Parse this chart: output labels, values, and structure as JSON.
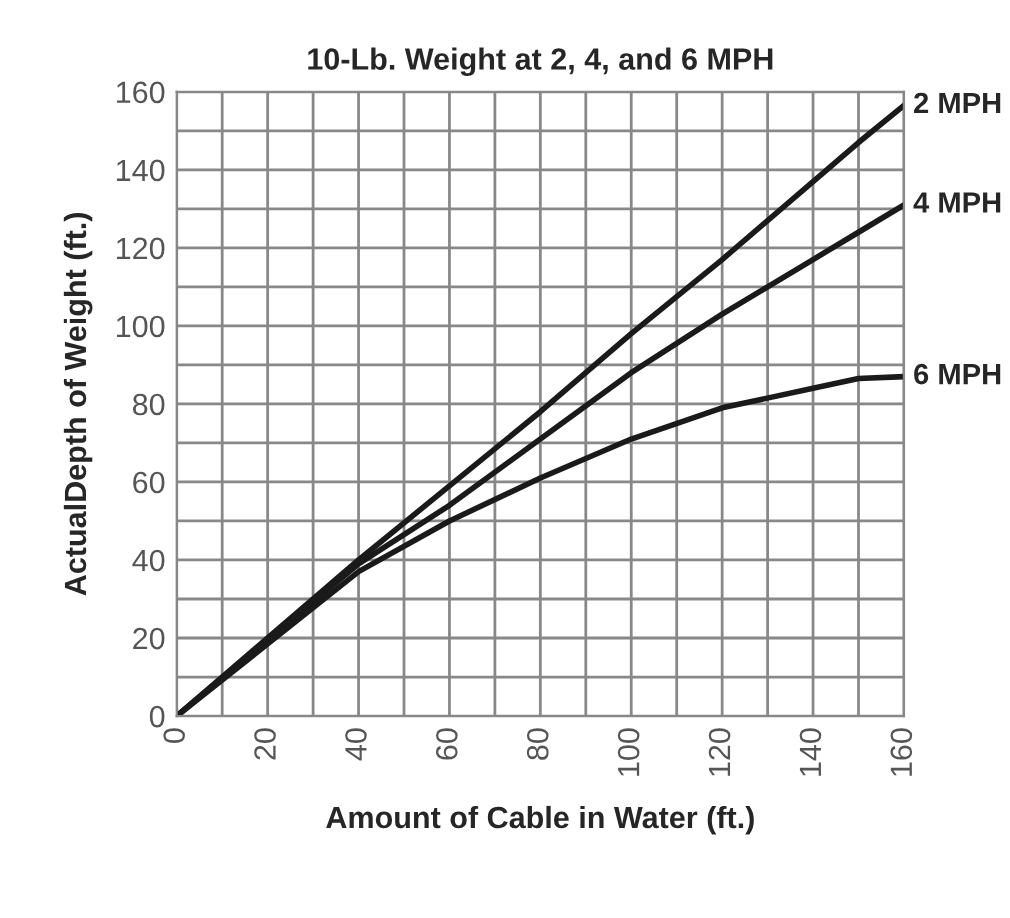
{
  "chart_data": {
    "type": "line",
    "title": "10-Lb. Weight at 2, 4, and 6 MPH",
    "xlabel": "Amount of Cable in Water (ft.)",
    "ylabel": "ActualDepth of Weight (ft.)",
    "x": [
      0,
      40,
      60,
      80,
      100,
      120,
      140,
      150,
      160
    ],
    "series": [
      {
        "name": "2 MPH",
        "color": "#1a1a1a",
        "values": [
          0,
          40,
          59,
          78,
          98,
          117,
          137,
          147,
          156.5
        ]
      },
      {
        "name": "4 MPH",
        "color": "#1a1a1a",
        "values": [
          0,
          39,
          54,
          71,
          88,
          103,
          117,
          124,
          131
        ]
      },
      {
        "name": "6 MPH",
        "color": "#1a1a1a",
        "values": [
          0,
          37,
          50,
          61,
          71,
          79,
          84,
          86.5,
          87
        ]
      }
    ],
    "xlim": [
      0,
      160
    ],
    "ylim": [
      0,
      160
    ],
    "xticks": [
      0,
      {
        "value": 10,
        "label": null
      },
      20,
      {
        "value": 30,
        "label": null
      },
      40,
      {
        "value": 50,
        "label": null
      },
      60,
      {
        "value": 70,
        "label": null
      },
      80,
      {
        "value": 90,
        "label": null
      },
      100,
      {
        "value": 110,
        "label": null
      },
      120,
      {
        "value": 130,
        "label": null
      },
      140,
      {
        "value": 150,
        "label": null
      },
      160
    ],
    "yticks": [
      0,
      {
        "value": 10,
        "label": null
      },
      20,
      {
        "value": 30,
        "label": null
      },
      40,
      {
        "value": 50,
        "label": null
      },
      60,
      {
        "value": 70,
        "label": null
      },
      80,
      {
        "value": 90,
        "label": null
      },
      100,
      {
        "value": 110,
        "label": null
      },
      120,
      {
        "value": 130,
        "label": null
      },
      140,
      {
        "value": 150,
        "label": null
      },
      160
    ],
    "grid": true,
    "legend": false,
    "marker": "none",
    "line_style": "solid"
  }
}
